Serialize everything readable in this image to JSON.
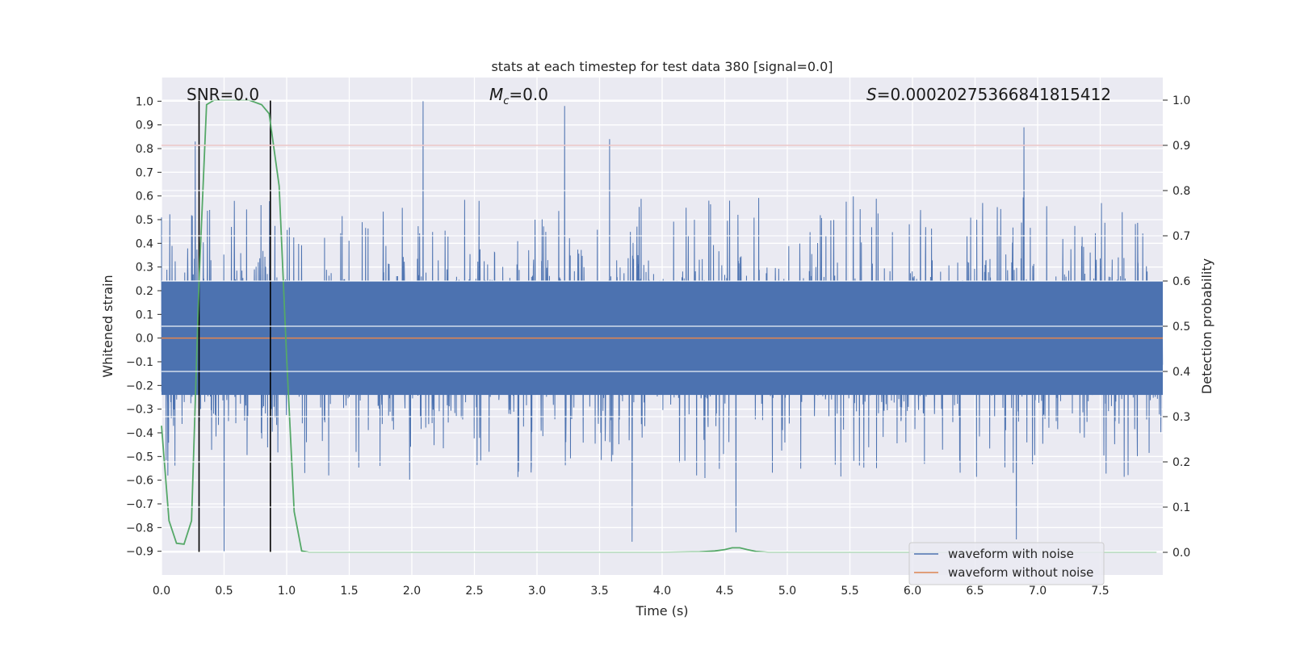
{
  "chart_data": {
    "type": "line",
    "title": "stats at each timestep for test data 380 [signal=0.0]",
    "xlabel": "Time (s)",
    "ylabel_left": "Whitened strain",
    "ylabel_right": "Detection probability",
    "xlim": [
      0.0,
      8.0
    ],
    "ylim_left": [
      -1.0,
      1.1
    ],
    "ylim_right": [
      -0.05,
      1.05
    ],
    "x_ticks": [
      0.0,
      0.5,
      1.0,
      1.5,
      2.0,
      2.5,
      3.0,
      3.5,
      4.0,
      4.5,
      5.0,
      5.5,
      6.0,
      6.5,
      7.0,
      7.5
    ],
    "x_tick_labels": [
      "0.0",
      "0.5",
      "1.0",
      "1.5",
      "2.0",
      "2.5",
      "3.0",
      "3.5",
      "4.0",
      "4.5",
      "5.0",
      "5.5",
      "6.0",
      "6.5",
      "7.0",
      "7.5"
    ],
    "y_left_ticks": [
      -0.9,
      -0.8,
      -0.7,
      -0.6,
      -0.5,
      -0.4,
      -0.3,
      -0.2,
      -0.1,
      0.0,
      0.1,
      0.2,
      0.3,
      0.4,
      0.5,
      0.6,
      0.7,
      0.8,
      0.9,
      1.0
    ],
    "y_left_tick_labels": [
      "−0.9",
      "−0.8",
      "−0.7",
      "−0.6",
      "−0.5",
      "−0.4",
      "−0.3",
      "−0.2",
      "−0.1",
      "0.0",
      "0.1",
      "0.2",
      "0.3",
      "0.4",
      "0.5",
      "0.6",
      "0.7",
      "0.8",
      "0.9",
      "1.0"
    ],
    "y_right_ticks": [
      0.0,
      0.1,
      0.2,
      0.3,
      0.4,
      0.5,
      0.6,
      0.7,
      0.8,
      0.9,
      1.0
    ],
    "y_right_tick_labels": [
      "0.0",
      "0.1",
      "0.2",
      "0.3",
      "0.4",
      "0.5",
      "0.6",
      "0.7",
      "0.8",
      "0.9",
      "1.0"
    ],
    "annotations": {
      "snr": "SNR=0.0",
      "mc_symbol": "M",
      "mc_sub": "c",
      "mc_value": "=0.0",
      "s_symbol": "S",
      "s_value": "=0.00020275366841815412"
    },
    "threshold_line_right": 0.9,
    "vertical_lines_x": [
      0.3,
      0.87
    ],
    "noise_series": {
      "name": "waveform with noise",
      "color": "#4c72b0",
      "core_amplitude": 0.24,
      "typical_peak_pos": [
        0.3,
        0.55
      ],
      "typical_peak_neg": [
        -0.35,
        -0.62
      ],
      "notable_spikes": [
        {
          "x": 0.27,
          "y": 0.83
        },
        {
          "x": 0.5,
          "y": -0.9
        },
        {
          "x": 2.09,
          "y": 1.0
        },
        {
          "x": 3.22,
          "y": 0.98
        },
        {
          "x": 3.58,
          "y": 0.84
        },
        {
          "x": 3.76,
          "y": -0.86
        },
        {
          "x": 4.59,
          "y": -0.82
        },
        {
          "x": 6.83,
          "y": -0.85
        },
        {
          "x": 6.89,
          "y": 0.89
        }
      ]
    },
    "clean_series": {
      "name": "waveform without noise",
      "color": "#dd8452",
      "value": 0.0
    },
    "probability_series": {
      "name": "detection probability",
      "color": "#55a868",
      "x": [
        0.0,
        0.06,
        0.12,
        0.18,
        0.24,
        0.3,
        0.36,
        0.42,
        0.5,
        0.6,
        0.7,
        0.8,
        0.86,
        0.94,
        1.0,
        1.06,
        1.12,
        1.18,
        1.5,
        2.0,
        3.0,
        4.0,
        4.3,
        4.42,
        4.5,
        4.56,
        4.62,
        4.68,
        4.75,
        4.85,
        5.0,
        6.0,
        7.0,
        7.95
      ],
      "y": [
        0.28,
        0.07,
        0.02,
        0.018,
        0.07,
        0.6,
        0.99,
        1.0,
        1.0,
        1.0,
        1.0,
        0.99,
        0.97,
        0.81,
        0.43,
        0.09,
        0.003,
        0.0,
        0.0,
        0.0,
        0.0,
        0.0,
        0.001,
        0.003,
        0.006,
        0.01,
        0.01,
        0.006,
        0.002,
        0.0,
        0.0,
        0.0,
        0.0,
        0.0
      ]
    },
    "threshold_color": "#c44e52",
    "legend": {
      "position": "lower-right",
      "entries": [
        "waveform with noise",
        "waveform without noise"
      ]
    }
  }
}
